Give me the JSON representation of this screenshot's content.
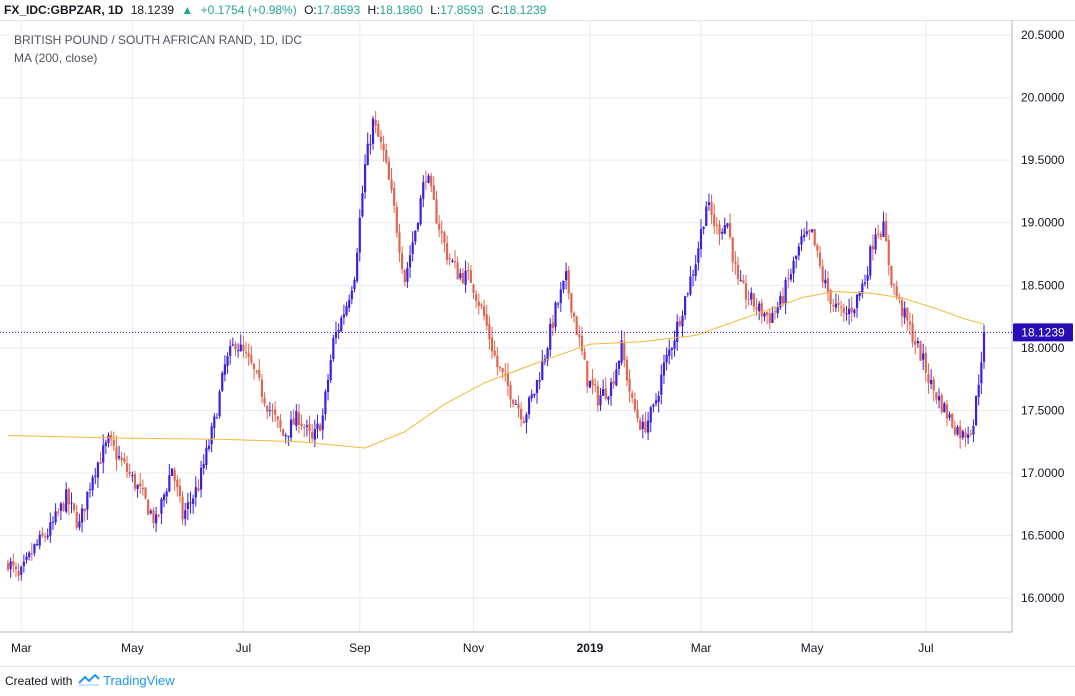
{
  "header": {
    "symbol": "FX_IDC:GBPZAR, 1D",
    "last": "18.1239",
    "change": "+0.1754 (+0.98%)",
    "open_label": "O:",
    "open": "17.8593",
    "high_label": "H:",
    "high": "18.1860",
    "low_label": "L:",
    "low": "17.8593",
    "close_label": "C:",
    "close": "18.1239"
  },
  "chart_data": {
    "type": "candlestick",
    "title": "BRITISH POUND / SOUTH AFRICAN RAND, 1D, IDC",
    "indicator_label": "MA (200, close)",
    "ylim": [
      15.73,
      20.62
    ],
    "y_ticks": [
      "16.0000",
      "16.5000",
      "17.0000",
      "17.5000",
      "18.0000",
      "18.5000",
      "19.0000",
      "19.5000",
      "20.0000",
      "20.5000"
    ],
    "y_tick_values": [
      16.0,
      16.5,
      17.0,
      17.5,
      18.0,
      18.5,
      19.0,
      19.5,
      20.0,
      20.5
    ],
    "x_ticks": [
      {
        "label": "Mar",
        "bold": false,
        "index": 2
      },
      {
        "label": "May",
        "bold": false,
        "index": 44
      },
      {
        "label": "Jul",
        "bold": false,
        "index": 86
      },
      {
        "label": "Sep",
        "bold": false,
        "index": 130
      },
      {
        "label": "Nov",
        "bold": false,
        "index": 173
      },
      {
        "label": "2019",
        "bold": true,
        "index": 217
      },
      {
        "label": "Mar",
        "bold": false,
        "index": 259
      },
      {
        "label": "May",
        "bold": false,
        "index": 301
      },
      {
        "label": "Jul",
        "bold": false,
        "index": 344
      }
    ],
    "last_price_label": "18.1239",
    "last_price": 18.1239,
    "candle_count": 370,
    "close_path": [
      [
        0,
        16.3
      ],
      [
        4,
        16.15
      ],
      [
        10,
        16.4
      ],
      [
        16,
        16.55
      ],
      [
        22,
        16.8
      ],
      [
        27,
        16.58
      ],
      [
        32,
        17.0
      ],
      [
        38,
        17.25
      ],
      [
        44,
        17.05
      ],
      [
        50,
        16.85
      ],
      [
        56,
        16.6
      ],
      [
        62,
        17.05
      ],
      [
        66,
        16.65
      ],
      [
        72,
        16.9
      ],
      [
        78,
        17.4
      ],
      [
        82,
        17.85
      ],
      [
        86,
        18.05
      ],
      [
        92,
        17.85
      ],
      [
        98,
        17.55
      ],
      [
        104,
        17.3
      ],
      [
        110,
        17.45
      ],
      [
        115,
        17.25
      ],
      [
        119,
        17.45
      ],
      [
        123,
        18.05
      ],
      [
        128,
        18.35
      ],
      [
        131,
        18.6
      ],
      [
        135,
        19.45
      ],
      [
        138,
        19.8
      ],
      [
        142,
        19.55
      ],
      [
        146,
        19.1
      ],
      [
        150,
        18.55
      ],
      [
        154,
        18.95
      ],
      [
        158,
        19.4
      ],
      [
        162,
        19.05
      ],
      [
        166,
        18.75
      ],
      [
        170,
        18.6
      ],
      [
        175,
        18.55
      ],
      [
        180,
        18.25
      ],
      [
        185,
        17.85
      ],
      [
        190,
        17.65
      ],
      [
        195,
        17.45
      ],
      [
        199,
        17.65
      ],
      [
        203,
        17.95
      ],
      [
        207,
        18.3
      ],
      [
        211,
        18.55
      ],
      [
        215,
        18.15
      ],
      [
        219,
        17.75
      ],
      [
        223,
        17.6
      ],
      [
        228,
        17.7
      ],
      [
        232,
        18.0
      ],
      [
        236,
        17.55
      ],
      [
        240,
        17.35
      ],
      [
        244,
        17.5
      ],
      [
        248,
        17.85
      ],
      [
        252,
        18.1
      ],
      [
        256,
        18.4
      ],
      [
        260,
        18.7
      ],
      [
        264,
        19.15
      ],
      [
        268,
        18.95
      ],
      [
        272,
        19.0
      ],
      [
        276,
        18.5
      ],
      [
        280,
        18.4
      ],
      [
        284,
        18.3
      ],
      [
        288,
        18.25
      ],
      [
        292,
        18.35
      ],
      [
        296,
        18.6
      ],
      [
        300,
        18.85
      ],
      [
        304,
        18.9
      ],
      [
        308,
        18.55
      ],
      [
        312,
        18.35
      ],
      [
        316,
        18.25
      ],
      [
        320,
        18.35
      ],
      [
        324,
        18.55
      ],
      [
        328,
        18.95
      ],
      [
        331,
        18.95
      ],
      [
        334,
        18.55
      ],
      [
        337,
        18.35
      ],
      [
        341,
        18.15
      ],
      [
        345,
        17.95
      ],
      [
        349,
        17.7
      ],
      [
        353,
        17.55
      ],
      [
        357,
        17.4
      ],
      [
        361,
        17.3
      ],
      [
        365,
        17.4
      ],
      [
        367,
        17.75
      ],
      [
        369,
        18.12
      ]
    ],
    "ma_path": [
      [
        0,
        17.3
      ],
      [
        40,
        17.28
      ],
      [
        80,
        17.27
      ],
      [
        110,
        17.25
      ],
      [
        125,
        17.22
      ],
      [
        135,
        17.2
      ],
      [
        150,
        17.33
      ],
      [
        165,
        17.55
      ],
      [
        180,
        17.72
      ],
      [
        200,
        17.88
      ],
      [
        220,
        18.03
      ],
      [
        240,
        18.05
      ],
      [
        260,
        18.1
      ],
      [
        280,
        18.25
      ],
      [
        300,
        18.4
      ],
      [
        312,
        18.45
      ],
      [
        325,
        18.44
      ],
      [
        338,
        18.4
      ],
      [
        350,
        18.32
      ],
      [
        362,
        18.23
      ],
      [
        369,
        18.19
      ]
    ],
    "colors": {
      "up": "#3a20e0",
      "down": "#e06650",
      "ma": "#f5b83a",
      "grid": "#e9ecf2",
      "last_price_line": "#2a0cb6",
      "last_price_label_bg": "#2a0cb6",
      "axis_text": "#131722",
      "header_green": "#26a69a"
    }
  },
  "footer": {
    "created_with": "Created with",
    "brand": "TradingView"
  }
}
